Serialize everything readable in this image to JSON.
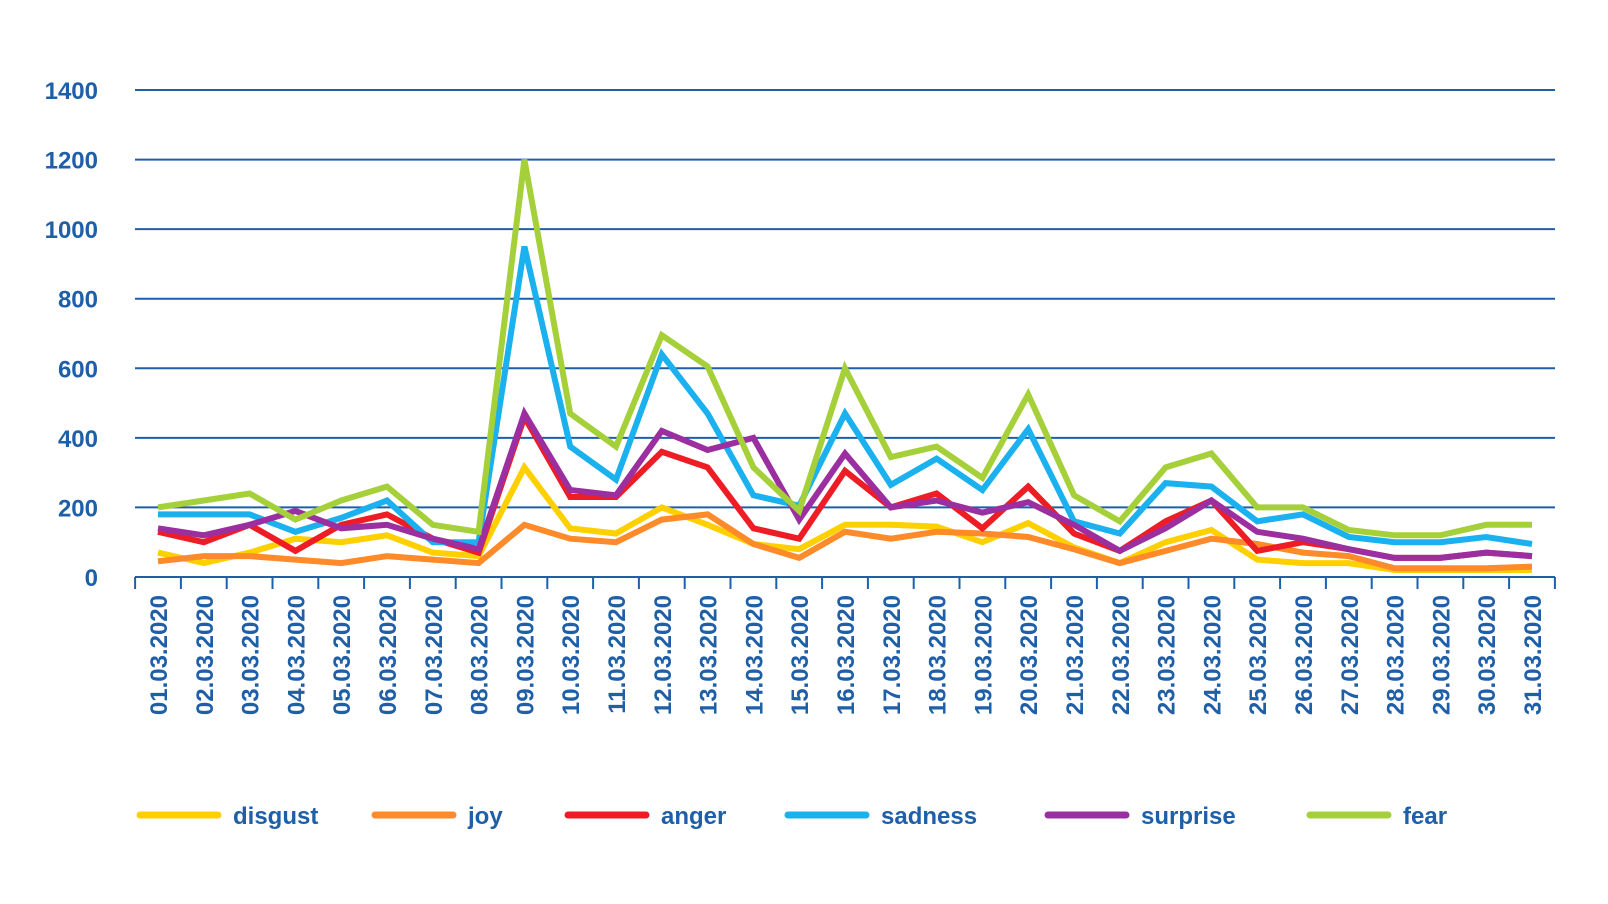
{
  "chart_data": {
    "type": "line",
    "title": "",
    "xlabel": "",
    "ylabel": "",
    "ylim": [
      0,
      1400
    ],
    "yticks": [
      "0",
      "200",
      "400",
      "600",
      "800",
      "1000",
      "1200",
      "1400"
    ],
    "grid": true,
    "legend_position": "bottom",
    "text_color": "#1f5fa8",
    "grid_color": "#1f5fa8",
    "categories": [
      "01.03.2020",
      "02.03.2020",
      "03.03.2020",
      "04.03.2020",
      "05.03.2020",
      "06.03.2020",
      "07.03.2020",
      "08.03.2020",
      "09.03.2020",
      "10.03.2020",
      "11.03.2020",
      "12.03.2020",
      "13.03.2020",
      "14.03.2020",
      "15.03.2020",
      "16.03.2020",
      "17.03.2020",
      "18.03.2020",
      "19.03.2020",
      "20.03.2020",
      "21.03.2020",
      "22.03.2020",
      "23.03.2020",
      "24.03.2020",
      "25.03.2020",
      "26.03.2020",
      "27.03.2020",
      "28.03.2020",
      "29.03.2020",
      "30.03.2020",
      "31.03.2020"
    ],
    "series": [
      {
        "name": "disgust",
        "color": "#ffd000",
        "values": [
          70,
          40,
          70,
          110,
          100,
          120,
          70,
          60,
          315,
          140,
          125,
          200,
          150,
          95,
          80,
          150,
          150,
          145,
          100,
          155,
          85,
          40,
          100,
          135,
          50,
          40,
          40,
          20,
          20,
          20,
          20
        ]
      },
      {
        "name": "joy",
        "color": "#ff8a2a",
        "values": [
          45,
          60,
          60,
          50,
          40,
          60,
          50,
          40,
          150,
          110,
          100,
          165,
          180,
          95,
          55,
          130,
          110,
          130,
          125,
          115,
          80,
          40,
          75,
          110,
          95,
          70,
          60,
          25,
          25,
          25,
          30
        ]
      },
      {
        "name": "anger",
        "color": "#ee1c25",
        "values": [
          130,
          100,
          150,
          75,
          150,
          180,
          110,
          70,
          460,
          230,
          230,
          360,
          315,
          140,
          110,
          305,
          200,
          240,
          140,
          260,
          125,
          75,
          160,
          220,
          75,
          100,
          80,
          55,
          55,
          70,
          60
        ]
      },
      {
        "name": "sadness",
        "color": "#1bb0ee",
        "values": [
          180,
          180,
          180,
          130,
          170,
          220,
          100,
          100,
          950,
          375,
          280,
          640,
          470,
          235,
          205,
          470,
          265,
          340,
          250,
          425,
          160,
          125,
          270,
          260,
          160,
          180,
          115,
          100,
          100,
          115,
          95
        ]
      },
      {
        "name": "surprise",
        "color": "#9b2fa0",
        "values": [
          140,
          120,
          150,
          190,
          140,
          150,
          110,
          80,
          470,
          250,
          235,
          420,
          365,
          400,
          165,
          355,
          200,
          220,
          185,
          215,
          150,
          75,
          140,
          220,
          130,
          110,
          80,
          55,
          55,
          70,
          60
        ]
      },
      {
        "name": "fear",
        "color": "#a5d03a",
        "values": [
          200,
          220,
          240,
          165,
          220,
          260,
          150,
          130,
          1200,
          470,
          375,
          695,
          605,
          315,
          190,
          600,
          345,
          375,
          285,
          525,
          235,
          160,
          315,
          355,
          200,
          200,
          135,
          120,
          120,
          150,
          150
        ]
      }
    ]
  }
}
